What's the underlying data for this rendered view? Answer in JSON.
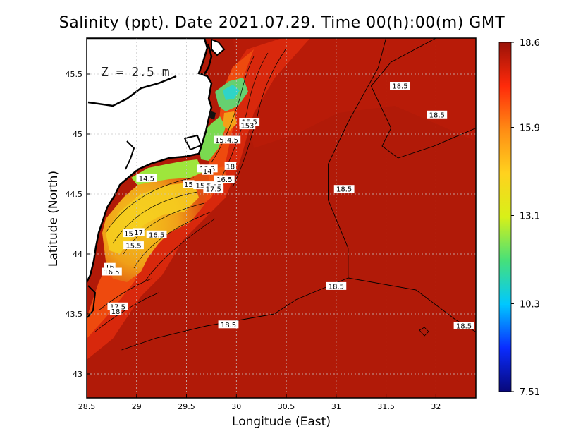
{
  "title": "Salinity (ppt). Date 2021.07.29. Time 00(h):00(m) GMT",
  "depth_label": "Z = 2.5 m",
  "colors": {
    "background_sea": "#b11a08",
    "land": "#ffffff",
    "coast": "#000000",
    "colorbar": [
      "#08087a",
      "#0a2cff",
      "#00c8ff",
      "#46e07a",
      "#d8f018",
      "#ffd21e",
      "#ff8c14",
      "#ff2a0a",
      "#9a1208"
    ]
  },
  "chart_data": {
    "type": "heatmap",
    "title": "Salinity (ppt). Date 2021.07.29. Time 00(h):00(m) GMT",
    "xlabel": "Longitude (East)",
    "ylabel": "Latitude (North)",
    "xlim": [
      28.5,
      32.4
    ],
    "ylim": [
      42.8,
      45.8
    ],
    "x_ticks": [
      "28.5",
      "29",
      "29.5",
      "30",
      "30.5",
      "31",
      "31.5",
      "32"
    ],
    "x_tick_values": [
      28.5,
      29,
      29.5,
      30,
      30.5,
      31,
      31.5,
      32
    ],
    "y_ticks": [
      "43",
      "43.5",
      "44",
      "44.5",
      "45",
      "45.5"
    ],
    "y_tick_values": [
      43,
      43.5,
      44,
      44.5,
      45,
      45.5
    ],
    "grid": true,
    "colorbar": {
      "min": 7.51,
      "max": 18.6,
      "tick_labels": [
        "18.6",
        "15.9",
        "13.1",
        "10.3",
        "7.51"
      ],
      "tick_values": [
        18.6,
        15.9,
        13.1,
        10.3,
        7.51
      ]
    },
    "contour_labels": [
      {
        "text": "18.5",
        "lon": 31.64,
        "lat": 45.4
      },
      {
        "text": "18.5",
        "lon": 32.01,
        "lat": 45.16
      },
      {
        "text": "15.5",
        "lon": 30.13,
        "lat": 45.1
      },
      {
        "text": "153",
        "lon": 30.11,
        "lat": 45.07
      },
      {
        "text": "14.5",
        "lon": 29.94,
        "lat": 44.95
      },
      {
        "text": "15",
        "lon": 29.83,
        "lat": 44.95
      },
      {
        "text": "18",
        "lon": 29.94,
        "lat": 44.73
      },
      {
        "text": "13.5",
        "lon": 29.71,
        "lat": 44.71
      },
      {
        "text": "14",
        "lon": 29.71,
        "lat": 44.69
      },
      {
        "text": "16.5",
        "lon": 29.88,
        "lat": 44.62
      },
      {
        "text": "14.5",
        "lon": 29.1,
        "lat": 44.63
      },
      {
        "text": "15",
        "lon": 29.52,
        "lat": 44.58
      },
      {
        "text": "15.5",
        "lon": 29.67,
        "lat": 44.57
      },
      {
        "text": "17",
        "lon": 29.81,
        "lat": 44.56
      },
      {
        "text": "17.5",
        "lon": 29.77,
        "lat": 44.54
      },
      {
        "text": "18.5",
        "lon": 31.08,
        "lat": 44.54
      },
      {
        "text": "15",
        "lon": 28.92,
        "lat": 44.17
      },
      {
        "text": "17",
        "lon": 29.02,
        "lat": 44.18
      },
      {
        "text": "16.5",
        "lon": 29.2,
        "lat": 44.16
      },
      {
        "text": "15.5",
        "lon": 28.97,
        "lat": 44.07
      },
      {
        "text": "16",
        "lon": 28.73,
        "lat": 43.89
      },
      {
        "text": "16.5",
        "lon": 28.75,
        "lat": 43.85
      },
      {
        "text": "18.5",
        "lon": 31.0,
        "lat": 43.73
      },
      {
        "text": "17.5",
        "lon": 28.81,
        "lat": 43.56
      },
      {
        "text": "18",
        "lon": 28.79,
        "lat": 43.52
      },
      {
        "text": "18.5",
        "lon": 29.92,
        "lat": 43.41
      },
      {
        "text": "18.5",
        "lon": 32.28,
        "lat": 43.4
      }
    ],
    "contours": [
      {
        "value": 18.5,
        "points": [
          [
            31.5,
            45.8
          ],
          [
            31.42,
            45.55
          ],
          [
            31.12,
            45.1
          ],
          [
            30.92,
            44.75
          ],
          [
            30.92,
            44.45
          ],
          [
            31.12,
            44.05
          ],
          [
            31.12,
            43.8
          ],
          [
            30.6,
            43.62
          ],
          [
            30.38,
            43.5
          ],
          [
            29.7,
            43.4
          ],
          [
            29.2,
            43.3
          ],
          [
            28.85,
            43.2
          ]
        ]
      },
      {
        "value": 18.5,
        "points": [
          [
            32.4,
            45.05
          ],
          [
            31.98,
            44.9
          ],
          [
            31.62,
            44.8
          ],
          [
            31.46,
            44.9
          ],
          [
            31.55,
            45.05
          ],
          [
            31.35,
            45.4
          ],
          [
            31.55,
            45.6
          ],
          [
            32.0,
            45.8
          ]
        ]
      },
      {
        "value": 18.5,
        "points": [
          [
            31.12,
            43.8
          ],
          [
            31.8,
            43.7
          ],
          [
            32.2,
            43.45
          ],
          [
            32.4,
            43.35
          ]
        ]
      }
    ]
  }
}
